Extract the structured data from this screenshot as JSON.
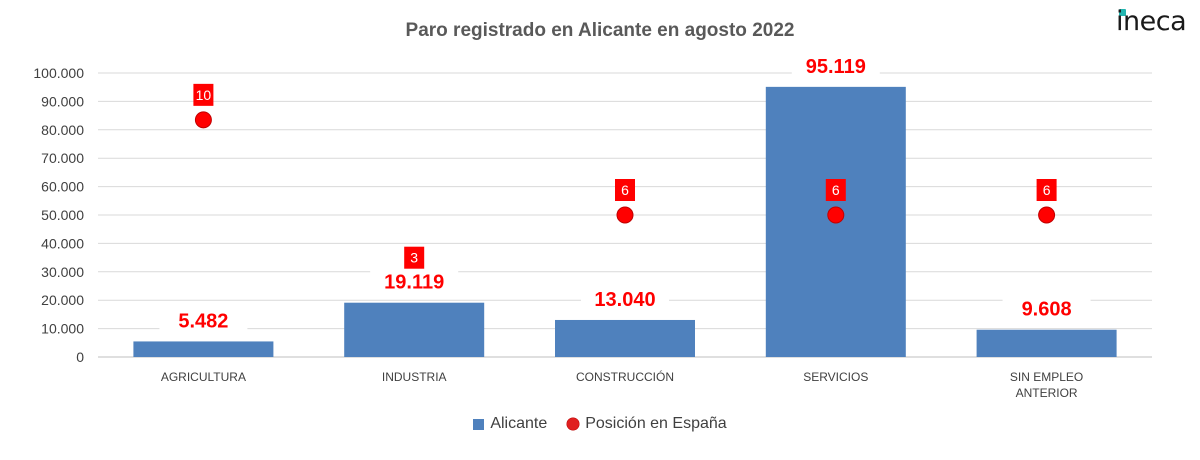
{
  "logo_text": "ineca",
  "colors": {
    "bar": "#4f81bd",
    "marker": "#ff0000",
    "label": "#ff0000",
    "axis_text": "#404040",
    "grid": "#d9d9d9"
  },
  "chart_data": {
    "type": "bar",
    "title": "Paro registrado en Alicante en agosto 2022",
    "categories": [
      [
        "AGRICULTURA"
      ],
      [
        "INDUSTRIA"
      ],
      [
        "CONSTRUCCIÓN"
      ],
      [
        "SERVICIOS"
      ],
      [
        "SIN EMPLEO",
        "ANTERIOR"
      ]
    ],
    "series": [
      {
        "name": "Alicante",
        "type": "bar",
        "values": [
          5482,
          19119,
          13040,
          95119,
          9608
        ],
        "labels": [
          "5.482",
          "19.119",
          "13.040",
          "95.119",
          "9.608"
        ]
      },
      {
        "name": "Posición en España",
        "type": "scatter",
        "values": [
          10,
          3,
          6,
          6,
          6
        ],
        "labels": [
          "10",
          "3",
          "6",
          "6",
          "6"
        ],
        "display_y": [
          83500,
          19119,
          50000,
          50000,
          50000
        ]
      }
    ],
    "ylim": [
      0,
      100000
    ],
    "yticks": [
      0,
      10000,
      20000,
      30000,
      40000,
      50000,
      60000,
      70000,
      80000,
      90000,
      100000
    ],
    "ytick_labels": [
      "0",
      "10.000",
      "20.000",
      "30.000",
      "40.000",
      "50.000",
      "60.000",
      "70.000",
      "80.000",
      "90.000",
      "100.000"
    ],
    "grid": true,
    "legend_position": "bottom"
  }
}
